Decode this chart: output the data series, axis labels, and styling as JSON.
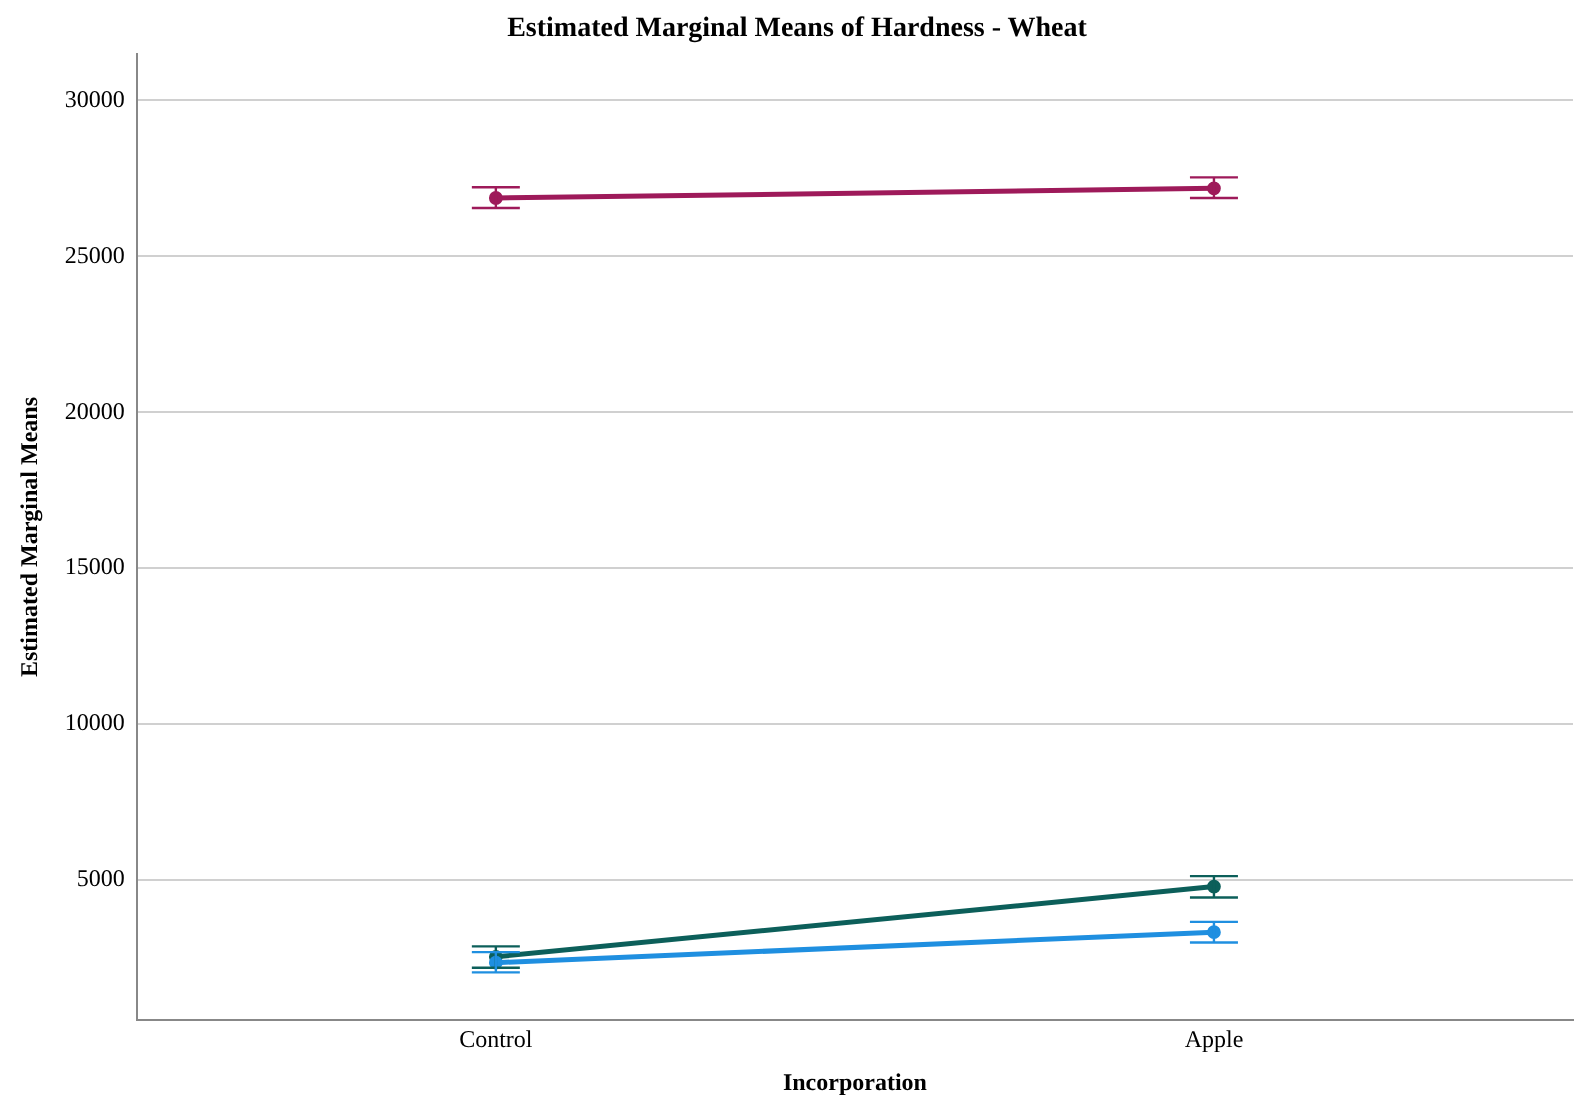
{
  "chart_data": {
    "type": "line",
    "title": "Estimated Marginal Means of Hardness - Wheat",
    "xlabel": "Incorporation",
    "ylabel": "Estimated Marginal Means",
    "categories": [
      "Control",
      "Apple"
    ],
    "series": [
      {
        "color": "#9e1a5a",
        "values": [
          26870,
          27180
        ],
        "errors": [
          [
            26550,
            27215
          ],
          [
            26870,
            27530
          ]
        ]
      },
      {
        "color": "#0c5f5a",
        "values": [
          2540,
          4790
        ],
        "errors": [
          [
            2190,
            2875
          ],
          [
            4440,
            5125
          ]
        ]
      },
      {
        "color": "#1f8fe0",
        "values": [
          2350,
          3330
        ],
        "errors": [
          [
            2040,
            2690
          ],
          [
            3000,
            3660
          ]
        ]
      }
    ],
    "ylim": [
      500,
      31500
    ],
    "yticks": [
      5000,
      10000,
      15000,
      20000,
      25000,
      30000
    ],
    "grid": "y",
    "legend": false,
    "marker": "circle",
    "line_style": "solid"
  }
}
